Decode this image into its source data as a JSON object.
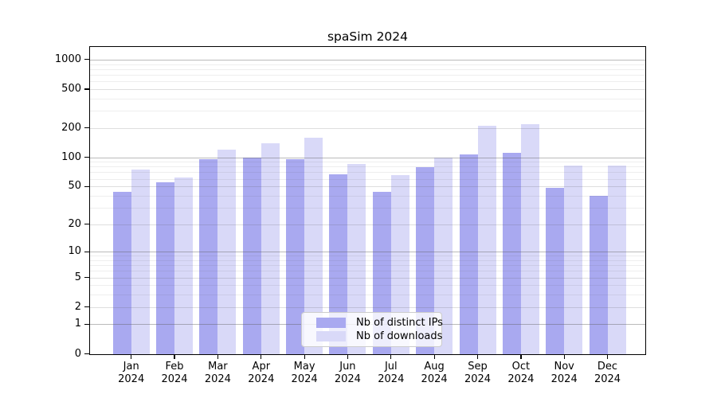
{
  "title": "spaSim 2024",
  "chart_data": {
    "type": "bar",
    "title": "spaSim 2024",
    "categories": [
      "Jan",
      "Feb",
      "Mar",
      "Apr",
      "May",
      "Jun",
      "Jul",
      "Aug",
      "Sep",
      "Oct",
      "Nov",
      "Dec"
    ],
    "year_label": "2024",
    "series": [
      {
        "name": "Nb of distinct IPs",
        "color": "#a9a9f0",
        "values": [
          44,
          55,
          95,
          100,
          95,
          67,
          44,
          79,
          108,
          112,
          48,
          40
        ]
      },
      {
        "name": "Nb of downloads",
        "color": "#d9d9f8",
        "values": [
          75,
          62,
          120,
          140,
          160,
          86,
          66,
          100,
          210,
          220,
          82,
          82
        ]
      }
    ],
    "y_ticks": [
      0,
      1,
      2,
      5,
      10,
      20,
      50,
      100,
      200,
      500,
      1000
    ],
    "y_scale": "log1p",
    "ylim": [
      0,
      1340
    ],
    "xlabel": "",
    "ylabel": "",
    "grid": true,
    "legend_position": "lower center"
  },
  "colors": {
    "background": "#ffffff",
    "axis": "#000000",
    "grid_major": "rgba(90,90,90,0.42)",
    "grid_mid": "rgba(90,90,90,0.20)",
    "grid_minor": "rgba(90,90,90,0.10)"
  }
}
